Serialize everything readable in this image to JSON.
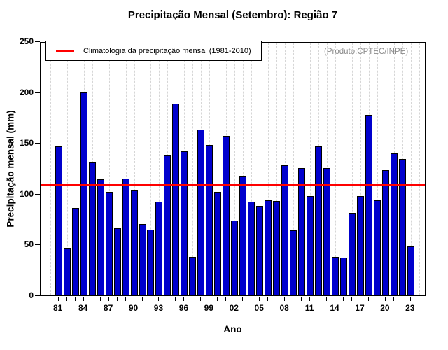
{
  "chart_data": {
    "type": "bar",
    "title": "Precipitação Mensal (Setembro): Região 7",
    "xlabel": "Ano",
    "ylabel": "Precipitação mensal (mm)",
    "annotation": "(Produto:CPTEC/INPE)",
    "legend": "Climatologia da precipitação mensal (1981-2010)",
    "legend_position": "top-left",
    "grid": "vertical-dashed",
    "ylim": [
      0,
      250
    ],
    "yticks": [
      0,
      50,
      100,
      150,
      200,
      250
    ],
    "ytick_labels": [
      "0",
      "50",
      "100",
      "150",
      "200",
      "250"
    ],
    "xtick_years_start": 1980,
    "xtick_years_end": 2024,
    "xtick_labeled_years": [
      1981,
      1984,
      1987,
      1990,
      1993,
      1996,
      1999,
      2002,
      2005,
      2008,
      2011,
      2014,
      2017,
      2020,
      2023
    ],
    "xtick_labels": [
      "81",
      "84",
      "87",
      "90",
      "93",
      "96",
      "99",
      "02",
      "05",
      "08",
      "11",
      "14",
      "17",
      "20",
      "23"
    ],
    "years": [
      1981,
      1982,
      1983,
      1984,
      1985,
      1986,
      1987,
      1988,
      1989,
      1990,
      1991,
      1992,
      1993,
      1994,
      1995,
      1996,
      1997,
      1998,
      1999,
      2000,
      2001,
      2002,
      2003,
      2004,
      2005,
      2006,
      2007,
      2008,
      2009,
      2010,
      2011,
      2012,
      2013,
      2014,
      2015,
      2016,
      2017,
      2018,
      2019,
      2020,
      2021,
      2022,
      2023
    ],
    "values": [
      147,
      46,
      86,
      200,
      131,
      114,
      102,
      66,
      115,
      103,
      70,
      65,
      92,
      138,
      189,
      142,
      38,
      163,
      148,
      102,
      157,
      74,
      117,
      92,
      88,
      94,
      93,
      128,
      64,
      125,
      98,
      147,
      125,
      38,
      37,
      81,
      98,
      178,
      94,
      123,
      140,
      134,
      48
    ],
    "climatology_value": 110,
    "colors": {
      "bar_fill": "#0000cd",
      "bar_border": "#000000",
      "climatology_line": "#ff0000",
      "grid_line": "#d6d6d6",
      "annotation_text": "#8c8c8c",
      "axis": "#000000"
    }
  }
}
